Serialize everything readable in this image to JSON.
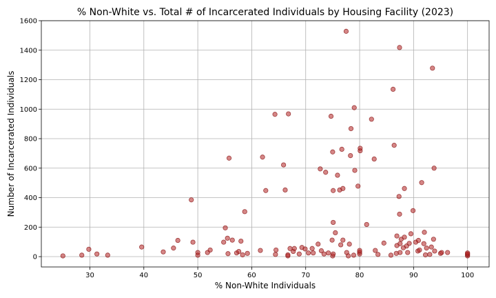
{
  "chart_data": {
    "type": "scatter",
    "title": "% Non-White vs. Total # of Incarcerated Individuals by Housing Facility (2023)",
    "xlabel": "% Non-White Individuals",
    "ylabel": "Number of Incarcerated Individuals",
    "xlim": [
      21,
      104
    ],
    "ylim": [
      -70,
      1600
    ],
    "xticks": [
      30,
      40,
      50,
      60,
      70,
      80,
      90,
      100
    ],
    "yticks": [
      0,
      200,
      400,
      600,
      800,
      1000,
      1200,
      1400,
      1600
    ],
    "grid": true,
    "marker_color": "#b22222",
    "points": [
      {
        "x": 25,
        "y": 5
      },
      {
        "x": 28.5,
        "y": 10
      },
      {
        "x": 29.8,
        "y": 50
      },
      {
        "x": 31.3,
        "y": 18
      },
      {
        "x": 33.3,
        "y": 10
      },
      {
        "x": 39.6,
        "y": 65
      },
      {
        "x": 43.6,
        "y": 32
      },
      {
        "x": 45.5,
        "y": 58
      },
      {
        "x": 46.3,
        "y": 110
      },
      {
        "x": 48.8,
        "y": 385
      },
      {
        "x": 49.1,
        "y": 98
      },
      {
        "x": 50,
        "y": 10
      },
      {
        "x": 50,
        "y": 28
      },
      {
        "x": 51.8,
        "y": 28
      },
      {
        "x": 52.3,
        "y": 45
      },
      {
        "x": 54.8,
        "y": 98
      },
      {
        "x": 55.1,
        "y": 195
      },
      {
        "x": 55.5,
        "y": 125
      },
      {
        "x": 55.6,
        "y": 20
      },
      {
        "x": 55.8,
        "y": 668
      },
      {
        "x": 56.4,
        "y": 112
      },
      {
        "x": 57.2,
        "y": 25
      },
      {
        "x": 57.6,
        "y": 35
      },
      {
        "x": 58,
        "y": 105
      },
      {
        "x": 58.3,
        "y": 12
      },
      {
        "x": 58.7,
        "y": 305
      },
      {
        "x": 59.2,
        "y": 22
      },
      {
        "x": 61.6,
        "y": 42
      },
      {
        "x": 62,
        "y": 675
      },
      {
        "x": 62.6,
        "y": 448
      },
      {
        "x": 64.3,
        "y": 965
      },
      {
        "x": 64.4,
        "y": 15
      },
      {
        "x": 64.5,
        "y": 45
      },
      {
        "x": 65.9,
        "y": 622
      },
      {
        "x": 66.2,
        "y": 452
      },
      {
        "x": 66.7,
        "y": 5
      },
      {
        "x": 66.7,
        "y": 12
      },
      {
        "x": 66.8,
        "y": 968
      },
      {
        "x": 67.1,
        "y": 55
      },
      {
        "x": 67.7,
        "y": 35
      },
      {
        "x": 67.9,
        "y": 55
      },
      {
        "x": 68.8,
        "y": 18
      },
      {
        "x": 69.3,
        "y": 62
      },
      {
        "x": 69.9,
        "y": 52
      },
      {
        "x": 70.5,
        "y": 25
      },
      {
        "x": 71.2,
        "y": 55
      },
      {
        "x": 71.4,
        "y": 25
      },
      {
        "x": 72.3,
        "y": 85
      },
      {
        "x": 72.7,
        "y": 595
      },
      {
        "x": 72.9,
        "y": 40
      },
      {
        "x": 73.4,
        "y": 18
      },
      {
        "x": 73.7,
        "y": 572
      },
      {
        "x": 74.2,
        "y": 25
      },
      {
        "x": 74.7,
        "y": 952
      },
      {
        "x": 74.9,
        "y": 112
      },
      {
        "x": 75,
        "y": 710
      },
      {
        "x": 75,
        "y": 5
      },
      {
        "x": 75.1,
        "y": 18
      },
      {
        "x": 75.1,
        "y": 232
      },
      {
        "x": 75.1,
        "y": 448
      },
      {
        "x": 75.5,
        "y": 162
      },
      {
        "x": 75.9,
        "y": 552
      },
      {
        "x": 76.3,
        "y": 452
      },
      {
        "x": 76.5,
        "y": 80
      },
      {
        "x": 76.7,
        "y": 728
      },
      {
        "x": 76.9,
        "y": 462
      },
      {
        "x": 76.9,
        "y": 112
      },
      {
        "x": 77.5,
        "y": 1528
      },
      {
        "x": 77.6,
        "y": 28
      },
      {
        "x": 77.9,
        "y": 5
      },
      {
        "x": 78.1,
        "y": 85
      },
      {
        "x": 78.3,
        "y": 685
      },
      {
        "x": 78.4,
        "y": 868
      },
      {
        "x": 78.9,
        "y": 10
      },
      {
        "x": 79,
        "y": 1010
      },
      {
        "x": 79.1,
        "y": 585
      },
      {
        "x": 79.7,
        "y": 478
      },
      {
        "x": 80,
        "y": 18
      },
      {
        "x": 80,
        "y": 30
      },
      {
        "x": 80,
        "y": 42
      },
      {
        "x": 80.1,
        "y": 718
      },
      {
        "x": 80.1,
        "y": 735
      },
      {
        "x": 81.3,
        "y": 218
      },
      {
        "x": 82.2,
        "y": 932
      },
      {
        "x": 82.7,
        "y": 662
      },
      {
        "x": 82.9,
        "y": 42
      },
      {
        "x": 83.4,
        "y": 15
      },
      {
        "x": 84.5,
        "y": 92
      },
      {
        "x": 85.8,
        "y": 10
      },
      {
        "x": 86.2,
        "y": 1135
      },
      {
        "x": 86.4,
        "y": 755
      },
      {
        "x": 86.8,
        "y": 22
      },
      {
        "x": 86.9,
        "y": 140
      },
      {
        "x": 86.9,
        "y": 75
      },
      {
        "x": 87.3,
        "y": 408
      },
      {
        "x": 87.4,
        "y": 1418
      },
      {
        "x": 87.4,
        "y": 288
      },
      {
        "x": 87.5,
        "y": 28
      },
      {
        "x": 87.5,
        "y": 88
      },
      {
        "x": 87.7,
        "y": 118
      },
      {
        "x": 88.1,
        "y": 60
      },
      {
        "x": 88.3,
        "y": 132
      },
      {
        "x": 88.3,
        "y": 462
      },
      {
        "x": 88.7,
        "y": 72
      },
      {
        "x": 88.9,
        "y": 28
      },
      {
        "x": 89.2,
        "y": 90
      },
      {
        "x": 89.5,
        "y": 155
      },
      {
        "x": 89.9,
        "y": 312
      },
      {
        "x": 90.4,
        "y": 98
      },
      {
        "x": 90.8,
        "y": 38
      },
      {
        "x": 90.9,
        "y": 110
      },
      {
        "x": 91.1,
        "y": 45
      },
      {
        "x": 91.5,
        "y": 502
      },
      {
        "x": 91.9,
        "y": 88
      },
      {
        "x": 92,
        "y": 165
      },
      {
        "x": 92.2,
        "y": 12
      },
      {
        "x": 92.4,
        "y": 58
      },
      {
        "x": 93,
        "y": 15
      },
      {
        "x": 93.3,
        "y": 65
      },
      {
        "x": 93.5,
        "y": 1278
      },
      {
        "x": 93.7,
        "y": 118
      },
      {
        "x": 93.8,
        "y": 600
      },
      {
        "x": 93.9,
        "y": 38
      },
      {
        "x": 95,
        "y": 22
      },
      {
        "x": 95.2,
        "y": 28
      },
      {
        "x": 96.3,
        "y": 28
      },
      {
        "x": 100,
        "y": 5
      },
      {
        "x": 100,
        "y": 12
      },
      {
        "x": 100,
        "y": 18
      },
      {
        "x": 100,
        "y": 25
      }
    ]
  }
}
